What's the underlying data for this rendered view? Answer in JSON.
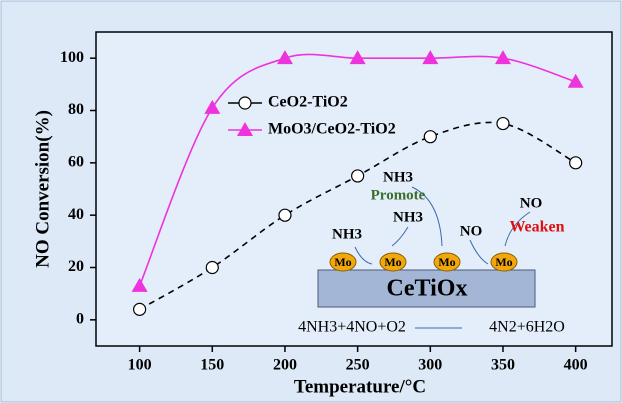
{
  "chart_data": {
    "type": "line",
    "x_label": "Temperature/°C",
    "y_label": "NO Conversion(%)",
    "x": [
      100,
      150,
      200,
      250,
      300,
      350,
      400
    ],
    "series": [
      {
        "name": "CeO2-TiO2",
        "color": "#000000",
        "marker": "circle",
        "line_style": "dashed",
        "values": [
          4,
          20,
          40,
          55,
          70,
          75,
          60
        ]
      },
      {
        "name": "MoO3/CeO2-TiO2",
        "color": "#ee33dd",
        "marker": "triangle",
        "line_style": "solid",
        "values": [
          13,
          81,
          100,
          100,
          100,
          100,
          91
        ]
      }
    ],
    "xlim": [
      70,
      425
    ],
    "ylim": [
      -10,
      110
    ],
    "xticks": [
      100,
      150,
      200,
      250,
      300,
      350,
      400
    ],
    "yticks": [
      0,
      20,
      40,
      60,
      80,
      100
    ],
    "grid": false,
    "legend": "upper left",
    "annotations": [
      "NH3",
      "Promote",
      "NH3",
      "NH3",
      "NO",
      "NO",
      "Weaken",
      "Mo",
      "Mo",
      "Mo",
      "Mo",
      "CeTiOx",
      "4NH3+4NO+O2",
      "4N2+6H2O"
    ]
  }
}
